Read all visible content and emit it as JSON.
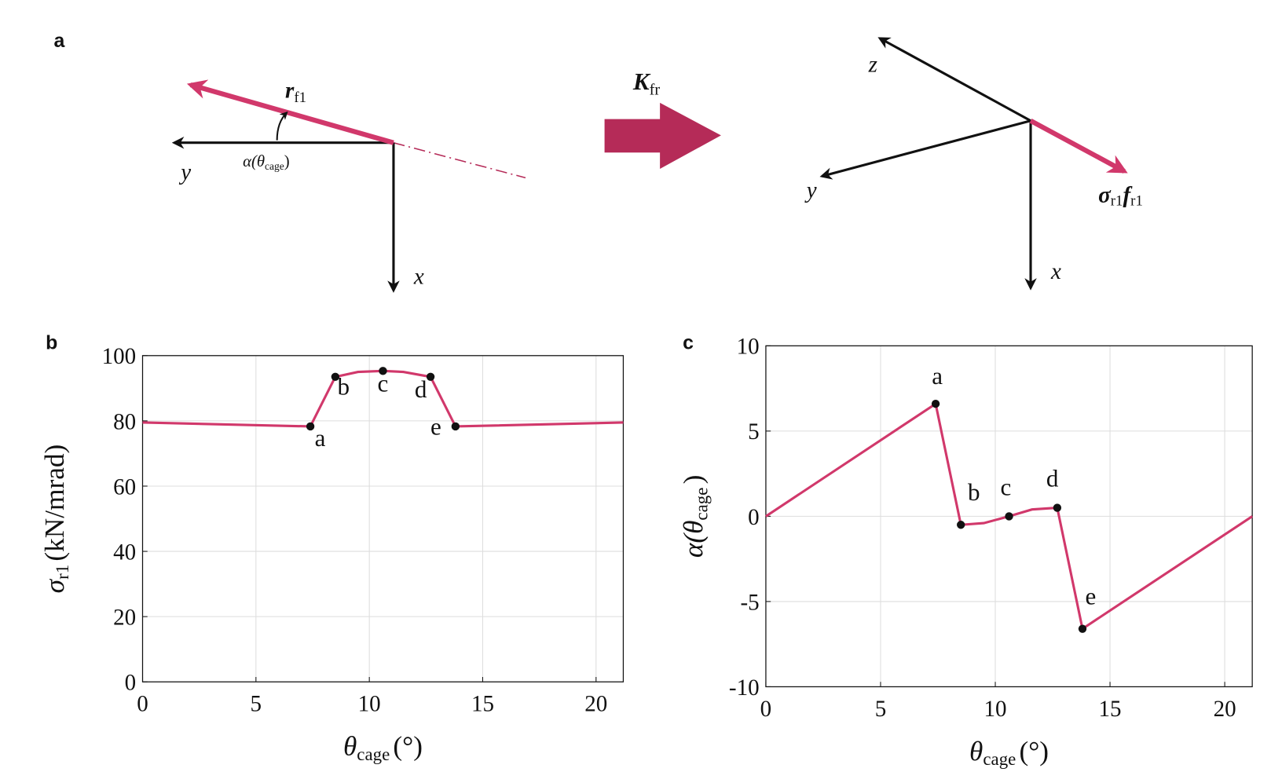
{
  "panels": [
    "a",
    "b",
    "c"
  ],
  "diagram": {
    "left": {
      "vector": {
        "symbol": "r",
        "sub": "f1"
      },
      "y_axis": "y",
      "x_axis": "x",
      "angle": {
        "symbol": "α(θ",
        "sub": "cage",
        "close": ")"
      }
    },
    "transform": {
      "symbol": "K",
      "sub": "fr"
    },
    "right": {
      "z_axis": "z",
      "y_axis": "y",
      "x_axis": "x",
      "force": {
        "s1": "σ",
        "sub1": "r1",
        "s2": "f",
        "sub2": "r1"
      }
    }
  },
  "chart_data": [
    {
      "type": "line",
      "color": "#d1386b",
      "grid": true,
      "xlabel": {
        "symbol": "θ",
        "sub": "cage",
        "unit": "(°)"
      },
      "ylabel": {
        "symbol": "σ",
        "sub": "r1",
        "unit": "(kN/mrad)"
      },
      "x": [
        0,
        7.4,
        8.5,
        9.5,
        10.6,
        11.5,
        12.7,
        13.8,
        21.2
      ],
      "values": [
        79.5,
        78.3,
        93.5,
        95,
        95.3,
        95,
        93.5,
        78.3,
        79.5
      ],
      "points": [
        {
          "label": "a",
          "x": 7.4,
          "y": 78.3
        },
        {
          "label": "b",
          "x": 8.5,
          "y": 93.5
        },
        {
          "label": "c",
          "x": 10.6,
          "y": 95.3
        },
        {
          "label": "d",
          "x": 12.7,
          "y": 93.5
        },
        {
          "label": "e",
          "x": 13.8,
          "y": 78.3
        }
      ],
      "xlim": [
        0,
        21.2
      ],
      "xticks": [
        0,
        5,
        10,
        15,
        20
      ],
      "ylim": [
        0,
        100
      ],
      "yticks": [
        0,
        20,
        40,
        60,
        80,
        100
      ]
    },
    {
      "type": "line",
      "color": "#d1386b",
      "grid": true,
      "xlabel": {
        "symbol": "θ",
        "sub": "cage",
        "unit": "(°)"
      },
      "ylabel": {
        "symbol": "α(θ",
        "sub": "cage",
        "unit": ")"
      },
      "x": [
        0,
        7.4,
        8.5,
        9.5,
        10.6,
        11.6,
        12.7,
        13.8,
        21.2
      ],
      "values": [
        0,
        6.6,
        -0.5,
        -0.4,
        0,
        0.4,
        0.5,
        -6.6,
        0
      ],
      "points": [
        {
          "label": "a",
          "x": 7.4,
          "y": 6.6
        },
        {
          "label": "b",
          "x": 8.5,
          "y": -0.5
        },
        {
          "label": "c",
          "x": 10.6,
          "y": 0
        },
        {
          "label": "d",
          "x": 12.7,
          "y": 0.5
        },
        {
          "label": "e",
          "x": 13.8,
          "y": -6.6
        }
      ],
      "xlim": [
        0,
        21.2
      ],
      "xticks": [
        0,
        5,
        10,
        15,
        20
      ],
      "ylim": [
        -10,
        10
      ],
      "yticks": [
        -10,
        -5,
        0,
        5,
        10
      ]
    }
  ]
}
